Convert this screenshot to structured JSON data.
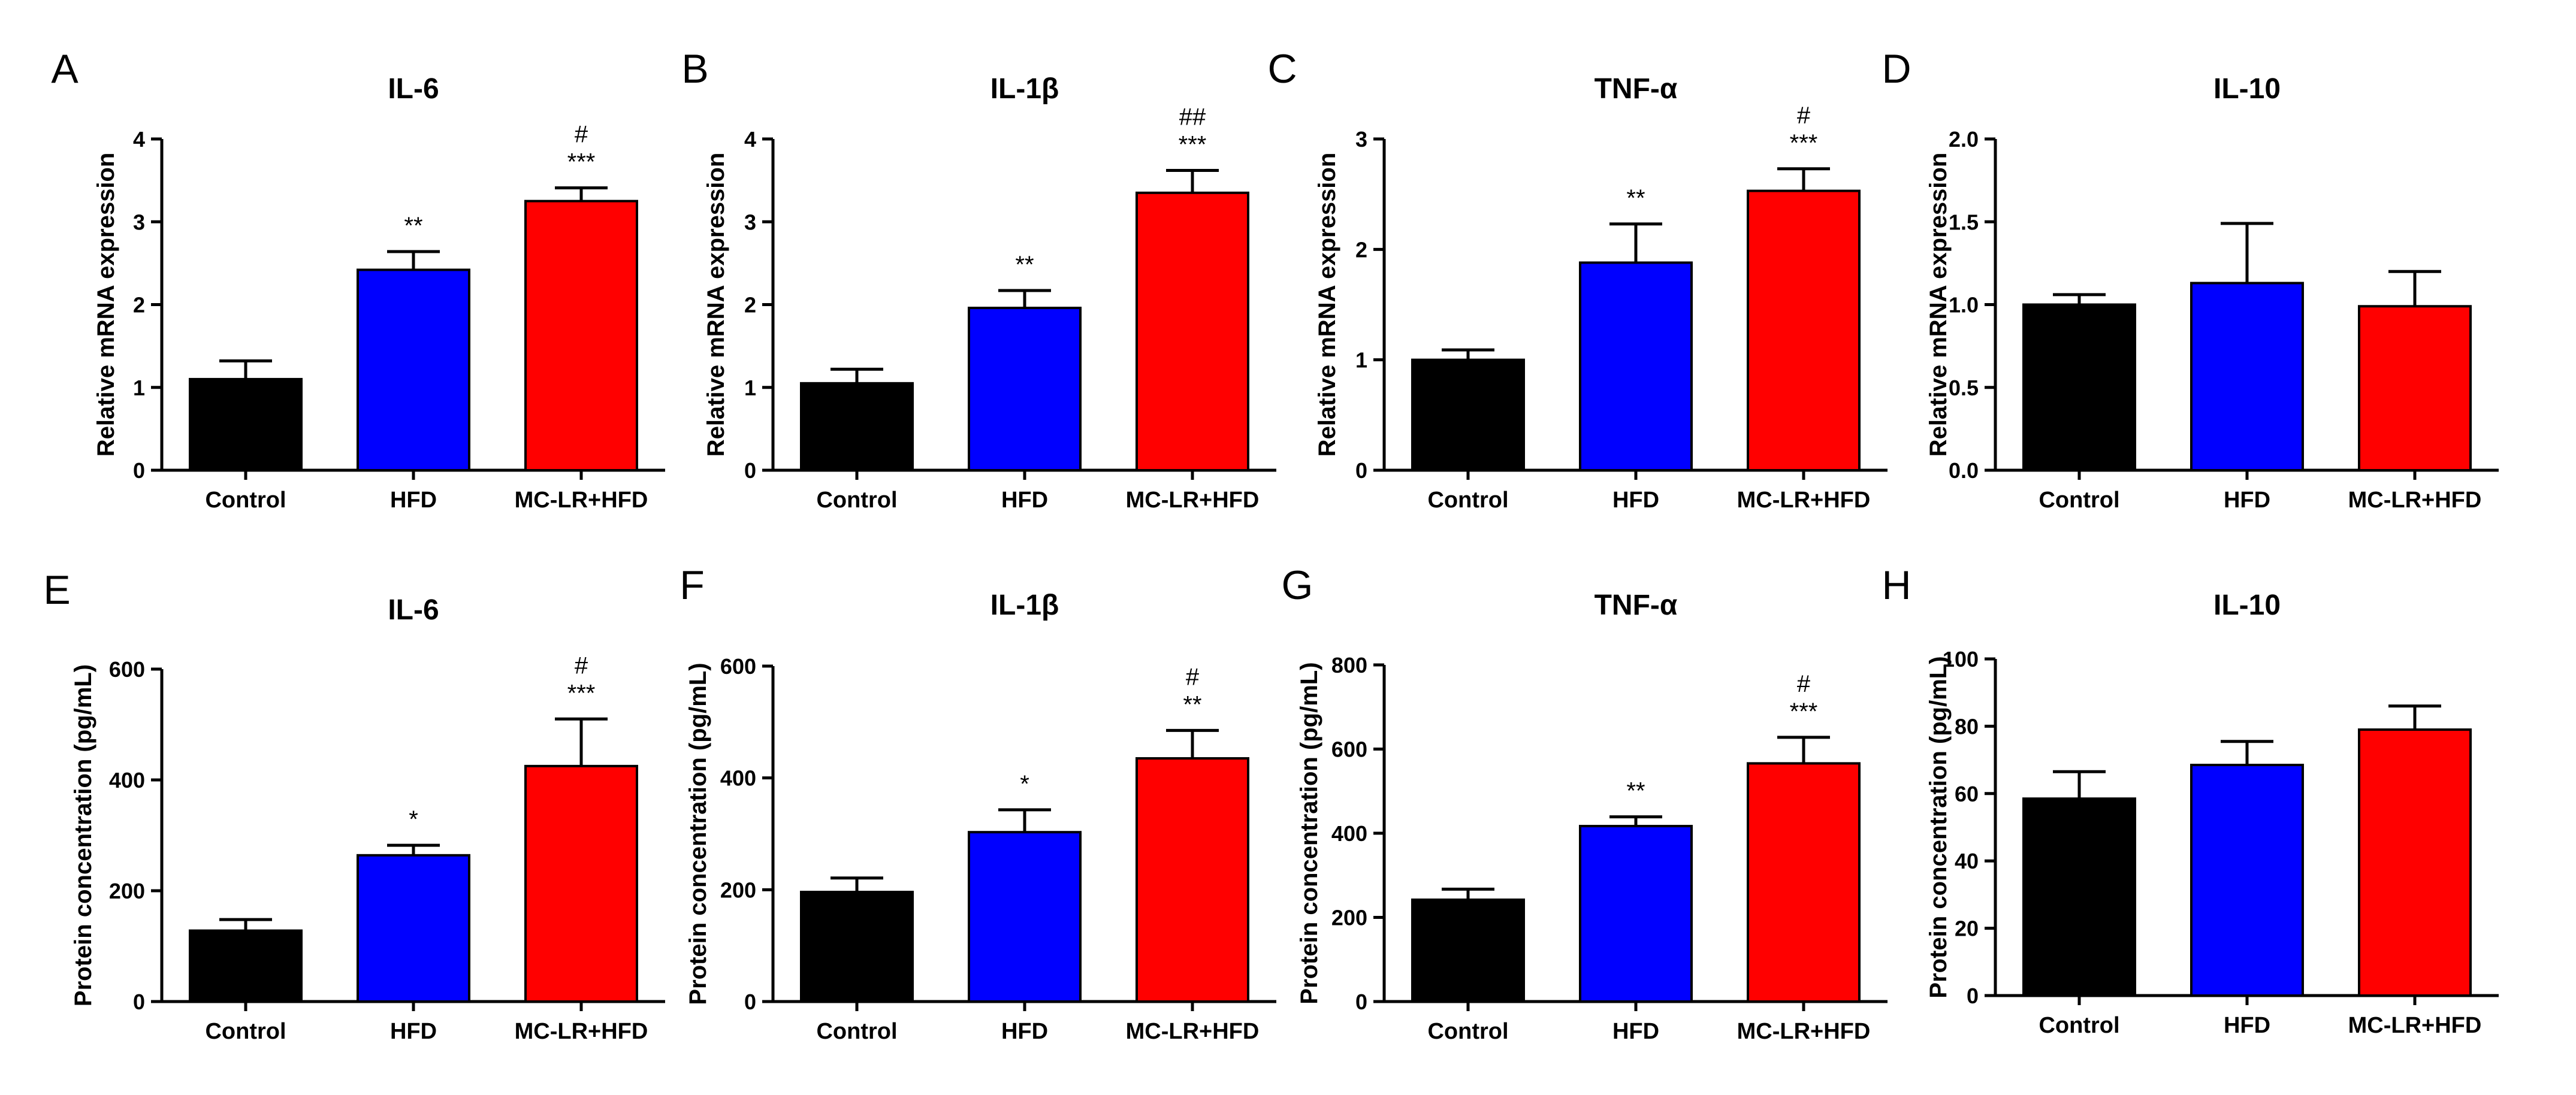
{
  "figure": {
    "category_labels": [
      "Control",
      "HFD",
      "MC-LR+HFD"
    ],
    "bar_colors": [
      "#000000",
      "#0000ff",
      "#ff0000"
    ]
  },
  "chart_data": [
    {
      "panel": "A",
      "type": "bar",
      "title": "IL-6",
      "ylabel": "Relative mRNA expression",
      "categories": [
        "Control",
        "HFD",
        "MC-LR+HFD"
      ],
      "values": [
        1.1,
        2.42,
        3.25
      ],
      "errors": [
        0.22,
        0.22,
        0.16
      ],
      "ylim": [
        0,
        4
      ],
      "yticks": [
        "0",
        "1",
        "2",
        "3",
        "4"
      ],
      "significance": [
        [],
        [
          "**"
        ],
        [
          "***",
          "#"
        ]
      ]
    },
    {
      "panel": "B",
      "type": "bar",
      "title": "IL-1β",
      "ylabel": "Relative mRNA expression",
      "categories": [
        "Control",
        "HFD",
        "MC-LR+HFD"
      ],
      "values": [
        1.05,
        1.96,
        3.35
      ],
      "errors": [
        0.17,
        0.21,
        0.27
      ],
      "ylim": [
        0,
        4
      ],
      "yticks": [
        "0",
        "1",
        "2",
        "3",
        "4"
      ],
      "significance": [
        [],
        [
          "**"
        ],
        [
          "***",
          "##"
        ]
      ]
    },
    {
      "panel": "C",
      "type": "bar",
      "title": "TNF-α",
      "ylabel": "Relative mRNA expression",
      "categories": [
        "Control",
        "HFD",
        "MC-LR+HFD"
      ],
      "values": [
        1.0,
        1.88,
        2.53
      ],
      "errors": [
        0.09,
        0.35,
        0.2
      ],
      "ylim": [
        0,
        3
      ],
      "yticks": [
        "0",
        "1",
        "2",
        "3"
      ],
      "significance": [
        [],
        [
          "**"
        ],
        [
          "***",
          "#"
        ]
      ]
    },
    {
      "panel": "D",
      "type": "bar",
      "title": "IL-10",
      "ylabel": "Relative mRNA expression",
      "categories": [
        "Control",
        "HFD",
        "MC-LR+HFD"
      ],
      "values": [
        1.0,
        1.13,
        0.99
      ],
      "errors": [
        0.06,
        0.36,
        0.21
      ],
      "ylim": [
        0,
        2
      ],
      "yticks": [
        "0.0",
        "0.5",
        "1.0",
        "1.5",
        "2.0"
      ],
      "significance": [
        [],
        [],
        []
      ]
    },
    {
      "panel": "E",
      "type": "bar",
      "title": "IL-6",
      "ylabel": "Protein concentration (pg/mL)",
      "categories": [
        "Control",
        "HFD",
        "MC-LR+HFD"
      ],
      "values": [
        128,
        264,
        425
      ],
      "errors": [
        20,
        18,
        85
      ],
      "ylim": [
        0,
        600
      ],
      "yticks": [
        "0",
        "200",
        "400",
        "600"
      ],
      "significance": [
        [],
        [
          "*"
        ],
        [
          "***",
          "#"
        ]
      ]
    },
    {
      "panel": "F",
      "type": "bar",
      "title": "IL-1β",
      "ylabel": "Protein concentration (pg/mL)",
      "categories": [
        "Control",
        "HFD",
        "MC-LR+HFD"
      ],
      "values": [
        196,
        303,
        435
      ],
      "errors": [
        25,
        40,
        50
      ],
      "ylim": [
        0,
        600
      ],
      "yticks": [
        "0",
        "200",
        "400",
        "600"
      ],
      "significance": [
        [],
        [
          "*"
        ],
        [
          "**",
          "#"
        ]
      ]
    },
    {
      "panel": "G",
      "type": "bar",
      "title": "TNF-α",
      "ylabel": "Protein concentration (pg/mL)",
      "categories": [
        "Control",
        "HFD",
        "MC-LR+HFD"
      ],
      "values": [
        242,
        417,
        566
      ],
      "errors": [
        25,
        22,
        62
      ],
      "ylim": [
        0,
        800
      ],
      "yticks": [
        "0",
        "200",
        "400",
        "600",
        "800"
      ],
      "significance": [
        [],
        [
          "**"
        ],
        [
          "***",
          "#"
        ]
      ]
    },
    {
      "panel": "H",
      "type": "bar",
      "title": "IL-10",
      "ylabel": "Protein concentration (pg/mL)",
      "categories": [
        "Control",
        "HFD",
        "MC-LR+HFD"
      ],
      "values": [
        58.5,
        68.5,
        79
      ],
      "errors": [
        8,
        7,
        7
      ],
      "ylim": [
        0,
        100
      ],
      "yticks": [
        "0",
        "20",
        "40",
        "60",
        "80",
        "100"
      ],
      "significance": [
        [],
        [],
        []
      ]
    }
  ]
}
